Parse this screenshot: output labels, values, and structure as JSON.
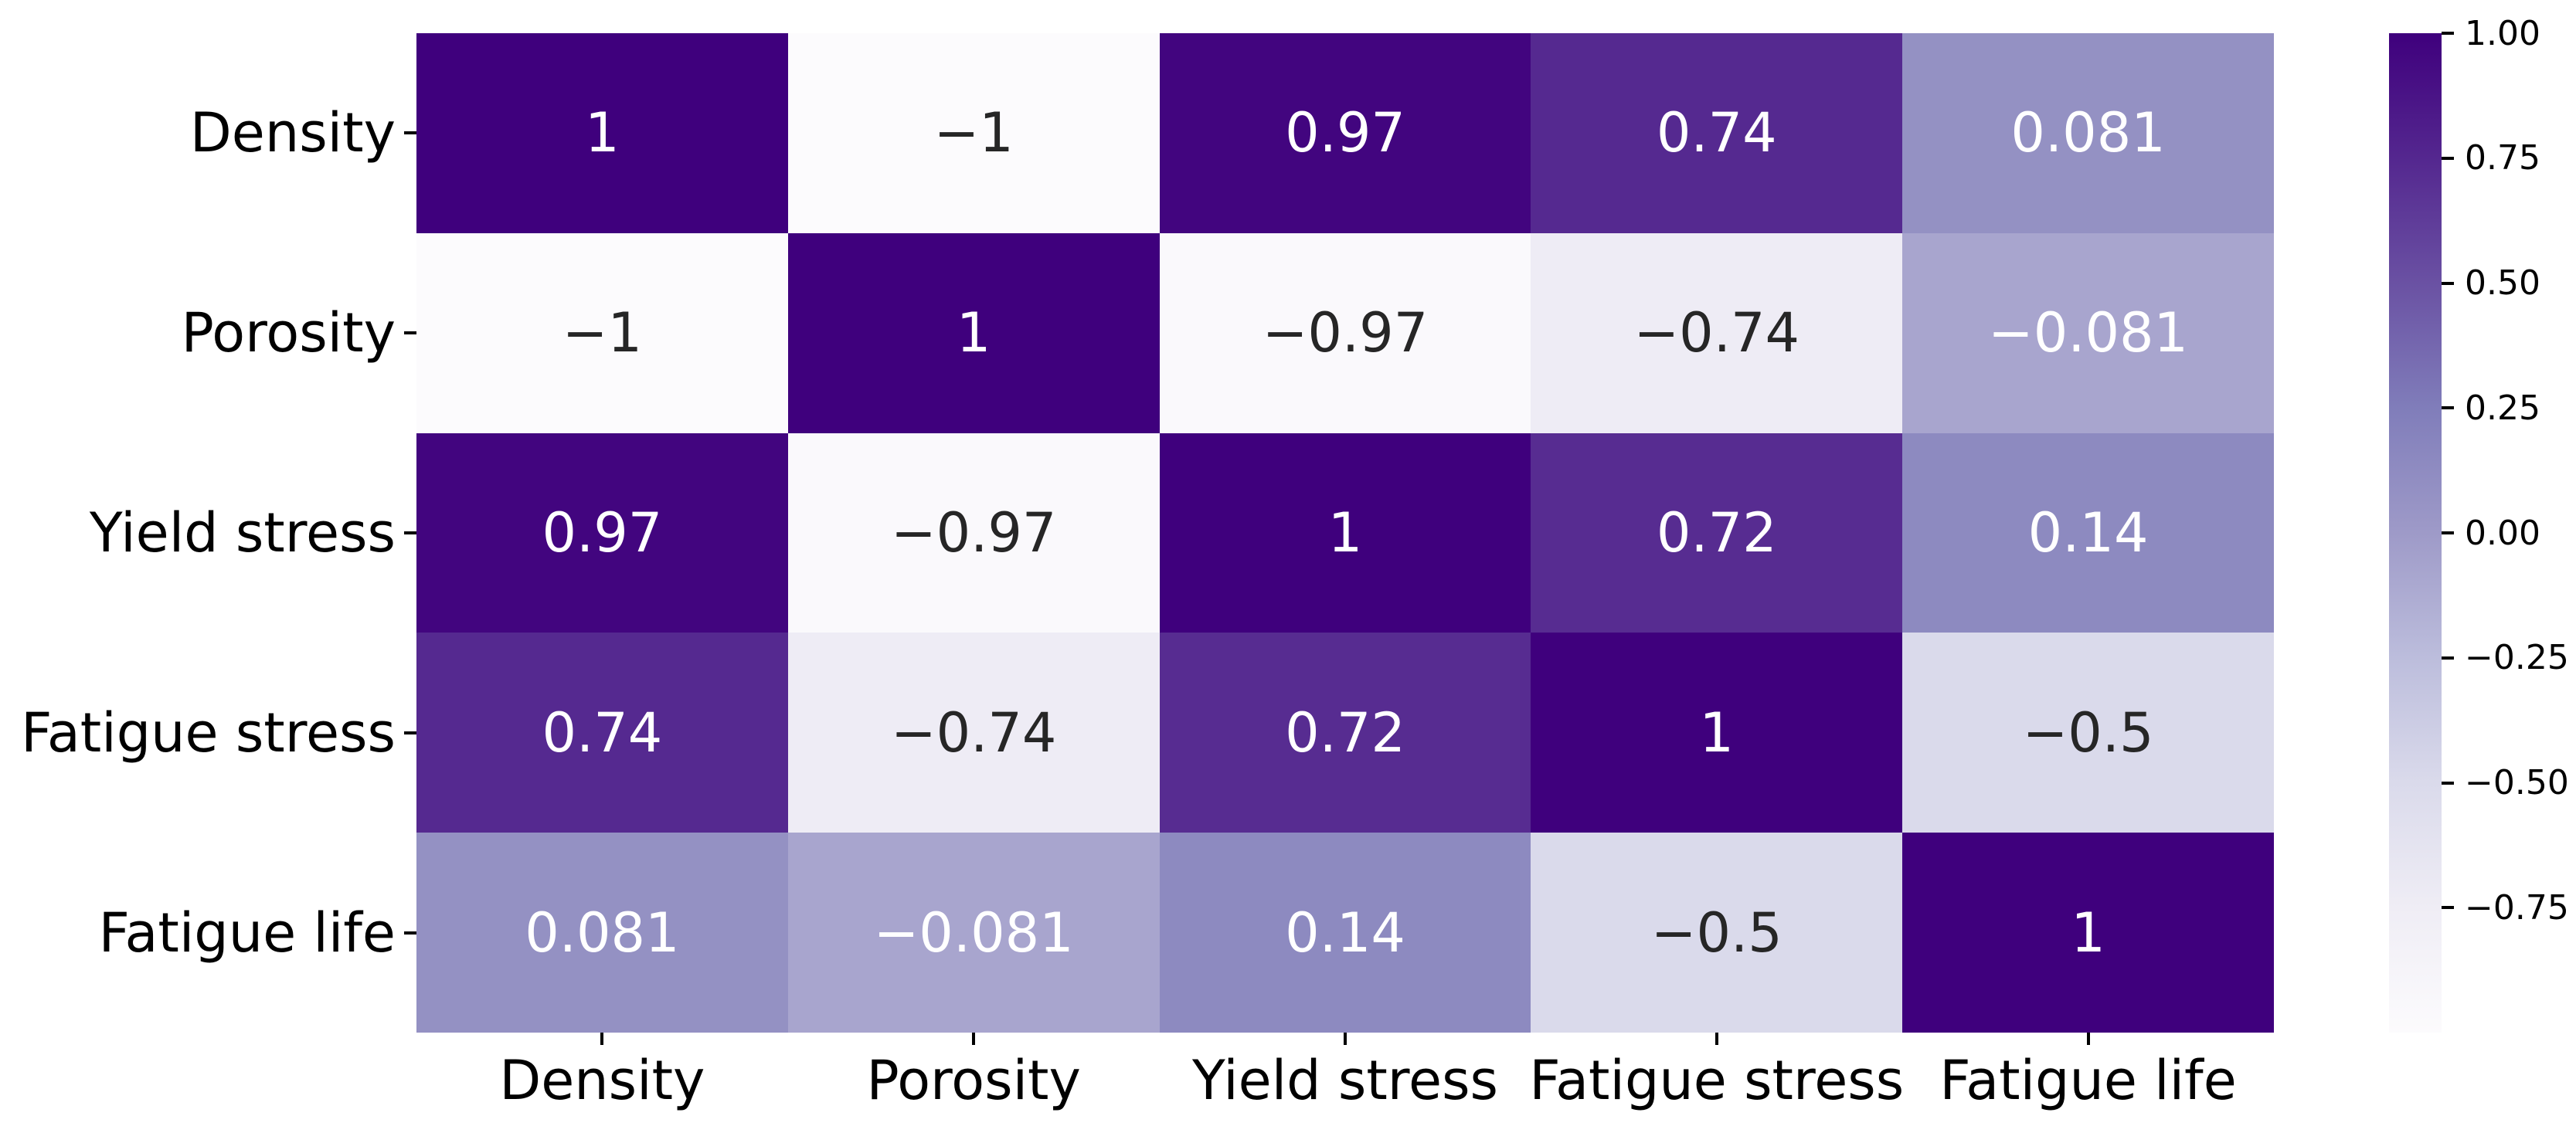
{
  "figure": {
    "background": "#ffffff"
  },
  "chart_data": {
    "type": "heatmap",
    "title": "",
    "x_categories": [
      "Density",
      "Porosity",
      "Yield stress",
      "Fatigue stress",
      "Fatigue life"
    ],
    "y_categories": [
      "Density",
      "Porosity",
      "Yield stress",
      "Fatigue stress",
      "Fatigue life"
    ],
    "matrix": [
      [
        1,
        -1,
        0.97,
        0.74,
        0.081
      ],
      [
        -1,
        1,
        -0.97,
        -0.74,
        -0.081
      ],
      [
        0.97,
        -0.97,
        1,
        0.72,
        0.14
      ],
      [
        0.74,
        -0.74,
        0.72,
        1,
        -0.5
      ],
      [
        0.081,
        -0.081,
        0.14,
        -0.5,
        1
      ]
    ],
    "annotations": [
      [
        "1",
        "−1",
        "0.97",
        "0.74",
        "0.081"
      ],
      [
        "−1",
        "1",
        "−0.97",
        "−0.74",
        "−0.081"
      ],
      [
        "0.97",
        "−0.97",
        "1",
        "0.72",
        "0.14"
      ],
      [
        "0.74",
        "−0.74",
        "0.72",
        "1",
        "−0.5"
      ],
      [
        "0.081",
        "−0.081",
        "0.14",
        "−0.5",
        "1"
      ]
    ],
    "vmin": -1,
    "vmax": 1,
    "grid": false,
    "colormap": {
      "name": "Purples",
      "stops": [
        "#fcfbfd",
        "#efedf5",
        "#dadaeb",
        "#bcbddc",
        "#9e9ac8",
        "#807dba",
        "#6a51a3",
        "#54278f",
        "#3f007d"
      ]
    },
    "annotation_text_colors": {
      "on_dark": "#ffffff",
      "on_light": "#262626"
    },
    "axis_label_color": "#000000",
    "tick_color": "#000000",
    "colorbar": {
      "position": "right",
      "tick_labels": [
        "1.00",
        "0.75",
        "0.50",
        "0.25",
        "0.00",
        "−0.25",
        "−0.50",
        "−0.75"
      ],
      "tick_values": [
        1.0,
        0.75,
        0.5,
        0.25,
        0.0,
        -0.25,
        -0.5,
        -0.75
      ]
    }
  }
}
